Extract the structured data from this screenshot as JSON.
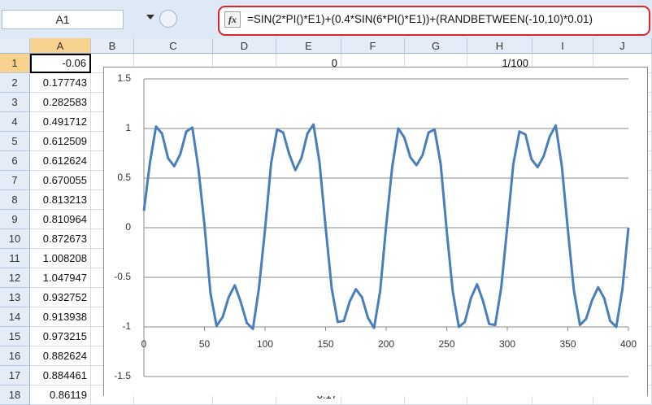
{
  "name_box": "A1",
  "formula": "=SIN(2*PI()*E1)+(0.4*SIN(6*PI()*E1))+(RANDBETWEEN(-10,10)*0.01)",
  "fx": "fx",
  "sheet": {
    "columns": [
      "A",
      "B",
      "C",
      "D",
      "E",
      "F",
      "G",
      "H",
      "I",
      "J"
    ],
    "rows": [
      {
        "n": 1,
        "A": "-0.06",
        "E": "0",
        "H": "1/100"
      },
      {
        "n": 2,
        "A": "0.177743"
      },
      {
        "n": 3,
        "A": "0.282583"
      },
      {
        "n": 4,
        "A": "0.491712"
      },
      {
        "n": 5,
        "A": "0.612509"
      },
      {
        "n": 6,
        "A": "0.612624"
      },
      {
        "n": 7,
        "A": "0.670055"
      },
      {
        "n": 8,
        "A": "0.813213"
      },
      {
        "n": 9,
        "A": "0.810964"
      },
      {
        "n": 10,
        "A": "0.872673"
      },
      {
        "n": 11,
        "A": "1.008208"
      },
      {
        "n": 12,
        "A": "1.047947"
      },
      {
        "n": 13,
        "A": "0.932752"
      },
      {
        "n": 14,
        "A": "0.913938"
      },
      {
        "n": 15,
        "A": "0.973215"
      },
      {
        "n": 16,
        "A": "0.882624"
      },
      {
        "n": 17,
        "A": "0.884461"
      },
      {
        "n": 18,
        "A": "0.86119",
        "E": "0.17"
      }
    ]
  },
  "chart_data": {
    "type": "line",
    "x": [
      0,
      5,
      10,
      15,
      20,
      25,
      30,
      35,
      40,
      45,
      50,
      55,
      60,
      65,
      70,
      75,
      80,
      85,
      90,
      95,
      100,
      105,
      110,
      115,
      120,
      125,
      130,
      135,
      140,
      145,
      150,
      155,
      160,
      165,
      170,
      175,
      180,
      185,
      190,
      195,
      200,
      205,
      210,
      215,
      220,
      225,
      230,
      235,
      240,
      245,
      250,
      255,
      260,
      265,
      270,
      275,
      280,
      285,
      290,
      295,
      300,
      305,
      310,
      315,
      320,
      325,
      330,
      335,
      340,
      345,
      350,
      355,
      360,
      365,
      370,
      375,
      380,
      385,
      390,
      395,
      400
    ],
    "series": [
      {
        "color": "#4a7ebb",
        "values": [
          0.17,
          0.66,
          1.02,
          0.95,
          0.7,
          0.62,
          0.74,
          0.97,
          1.01,
          0.6,
          0.03,
          -0.66,
          -0.99,
          -0.9,
          -0.7,
          -0.58,
          -0.75,
          -0.96,
          -1.02,
          -0.61,
          -0.02,
          0.65,
          0.99,
          0.96,
          0.74,
          0.58,
          0.7,
          0.95,
          1.04,
          0.66,
          0.01,
          -0.61,
          -0.95,
          -0.94,
          -0.74,
          -0.62,
          -0.7,
          -0.91,
          -1.01,
          -0.64,
          0.02,
          0.61,
          1.0,
          0.91,
          0.71,
          0.63,
          0.73,
          0.96,
          0.99,
          0.64,
          -0.03,
          -0.64,
          -1.0,
          -0.95,
          -0.71,
          -0.57,
          -0.74,
          -0.97,
          -0.98,
          -0.6,
          0.01,
          0.64,
          0.97,
          0.94,
          0.69,
          0.61,
          0.72,
          0.92,
          1.03,
          0.62,
          -0.02,
          -0.63,
          -0.98,
          -0.92,
          -0.73,
          -0.6,
          -0.71,
          -0.94,
          -1.0,
          -0.62,
          0.0
        ]
      }
    ],
    "xlim": [
      0,
      400
    ],
    "xticks": [
      0,
      50,
      100,
      150,
      200,
      250,
      300,
      350,
      400
    ],
    "ylim": [
      -1.5,
      1.5
    ],
    "yticks": [
      -1.5,
      -1,
      -0.5,
      0,
      0.5,
      1,
      1.5
    ],
    "x_axis_crosses": -1,
    "grid": true
  }
}
